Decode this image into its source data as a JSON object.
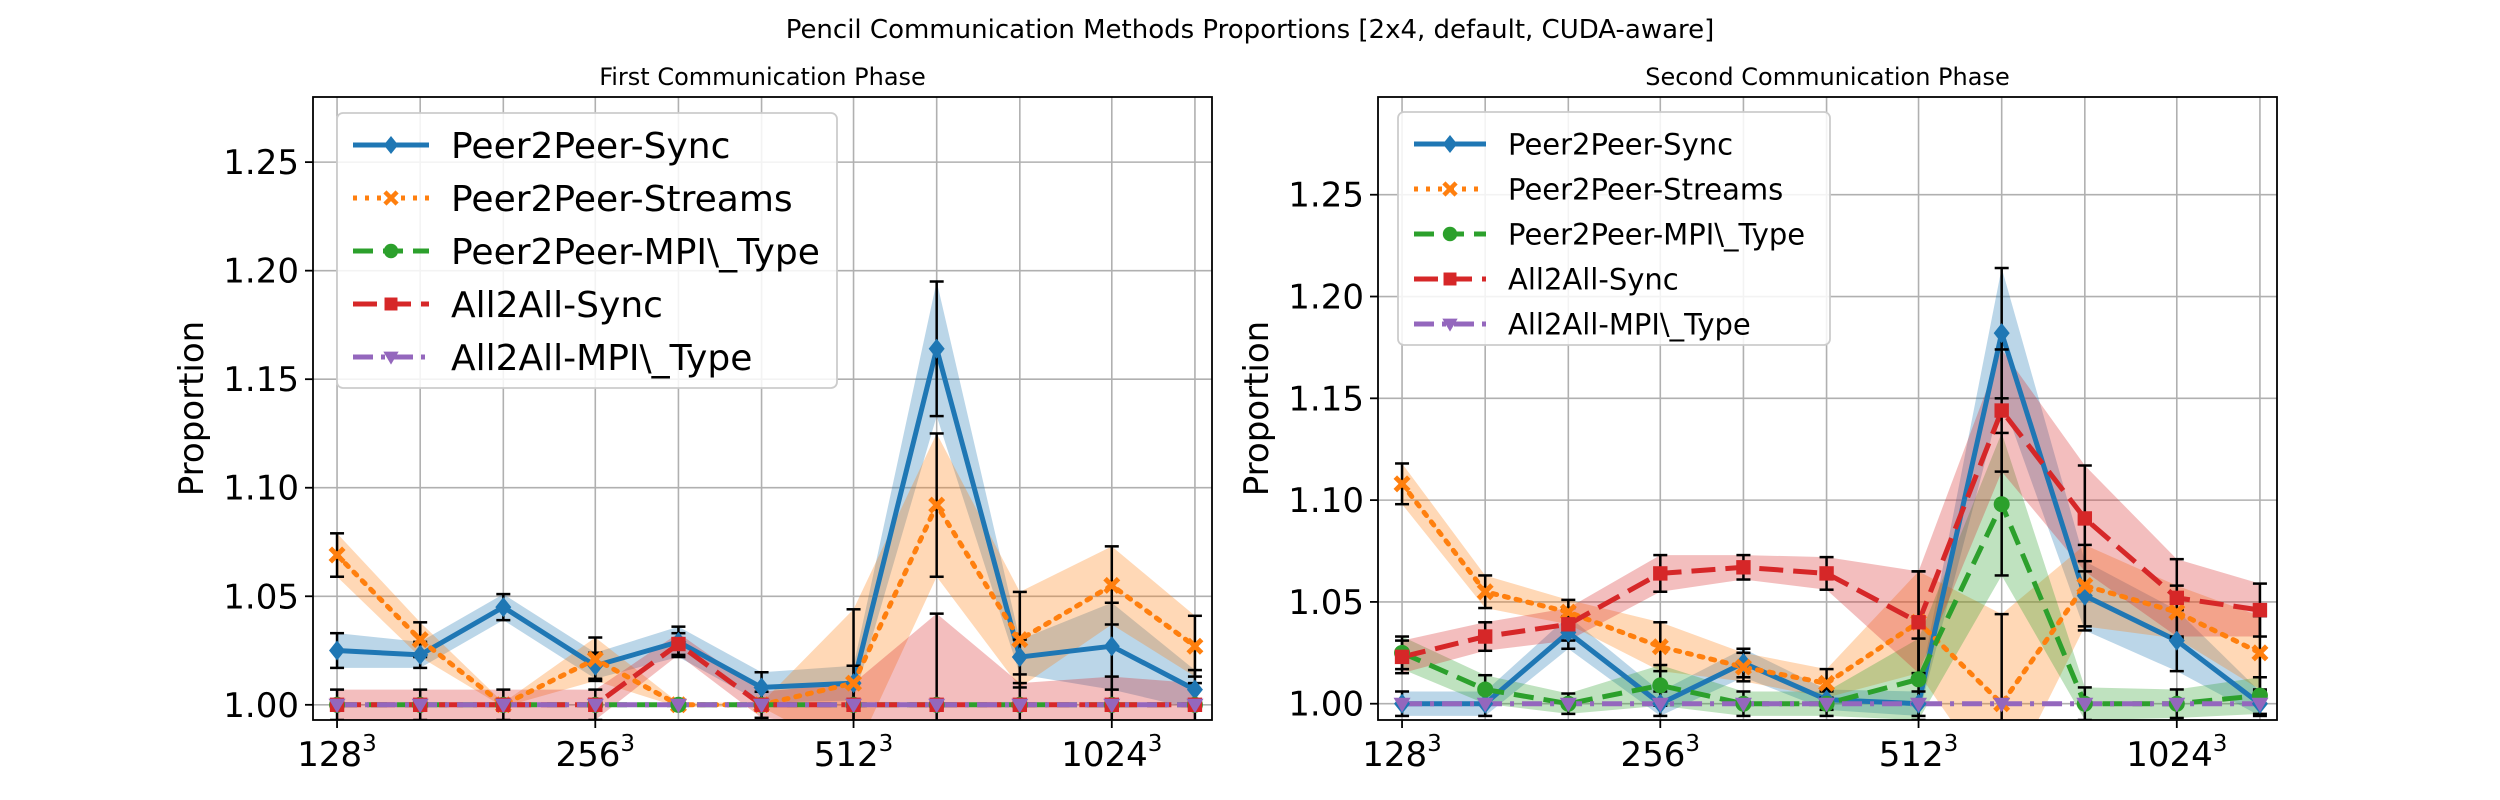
{
  "figure": {
    "title": "Pencil Communication Methods Proportions [2x4, default, CUDA-aware]"
  },
  "series_styles": [
    {
      "name": "Peer2Peer-Sync",
      "color": "#1f77b4",
      "dash": "",
      "marker": "diamond",
      "width": 5
    },
    {
      "name": "Peer2Peer-Streams",
      "color": "#ff7f0e",
      "dash": "4,8",
      "marker": "x",
      "width": 5
    },
    {
      "name": "Peer2Peer-MPI\\_Type",
      "color": "#2ca02c",
      "dash": "20,10",
      "marker": "circle",
      "width": 5
    },
    {
      "name": "All2All-Sync",
      "color": "#d62728",
      "dash": "24,10",
      "marker": "square",
      "width": 5
    },
    {
      "name": "All2All-MPI\\_Type",
      "color": "#9467bd",
      "dash": "20,8,4,8",
      "marker": "triangle-down",
      "width": 5
    }
  ],
  "chart_data": [
    {
      "type": "line",
      "title": "First Communication Phase",
      "xlabel": "",
      "ylabel": "Proportion",
      "x": [
        128,
        160,
        200,
        256,
        320,
        400,
        512,
        640,
        800,
        1024,
        1280
      ],
      "xticks": [
        {
          "value": 128,
          "base": "128",
          "exp": "3"
        },
        {
          "value": 256,
          "base": "256",
          "exp": "3"
        },
        {
          "value": 512,
          "base": "512",
          "exp": "3"
        },
        {
          "value": 1024,
          "base": "1024",
          "exp": "3"
        }
      ],
      "xscale": "log",
      "xlim": [
        120,
        1340
      ],
      "ylim": [
        0.993,
        1.28
      ],
      "yticks": [
        "1.00",
        "1.05",
        "1.10",
        "1.15",
        "1.20",
        "1.25"
      ],
      "grid": true,
      "legend": {
        "placement": "top-left",
        "size": "large",
        "entries": [
          "Peer2Peer-Sync",
          "Peer2Peer-Streams",
          "Peer2Peer-MPI\\_Type",
          "All2All-Sync",
          "All2All-MPI\\_Type"
        ]
      },
      "series": [
        {
          "name": "Peer2Peer-Sync",
          "values": [
            1.025,
            1.023,
            1.045,
            1.018,
            1.029,
            1.008,
            1.01,
            1.164,
            1.022,
            1.027,
            1.007
          ],
          "err": [
            0.008,
            0.006,
            0.006,
            0.006,
            0.007,
            0.007,
            0.008,
            0.031,
            0.008,
            0.02,
            0.009
          ]
        },
        {
          "name": "Peer2Peer-Streams",
          "values": [
            1.069,
            1.03,
            1.0,
            1.021,
            1.0,
            1.0,
            1.01,
            1.092,
            1.03,
            1.055,
            1.027
          ],
          "err": [
            0.01,
            0.008,
            0.001,
            0.01,
            0.001,
            0.001,
            0.034,
            0.033,
            0.022,
            0.018,
            0.014
          ]
        },
        {
          "name": "Peer2Peer-MPI\\_Type",
          "values": [
            1.0,
            1.0,
            1.0,
            1.0,
            1.0,
            1.0,
            1.0,
            1.0,
            1.0,
            1.0,
            1.0
          ],
          "err": [
            0.0,
            0.0,
            0.0,
            0.0,
            0.0,
            0.0,
            0.0,
            0.0,
            0.0,
            0.0,
            0.0
          ]
        },
        {
          "name": "All2All-Sync",
          "values": [
            1.0,
            1.0,
            1.0,
            1.0,
            1.028,
            1.0,
            1.0,
            1.0,
            1.0,
            1.0,
            1.0
          ],
          "err": [
            0.007,
            0.007,
            0.007,
            0.007,
            0.005,
            0.006,
            0.01,
            0.042,
            0.01,
            0.013,
            0.01
          ]
        },
        {
          "name": "All2All-MPI\\_Type",
          "values": [
            1.0,
            1.0,
            1.0,
            1.0,
            1.0,
            1.0,
            1.0,
            1.0,
            1.0,
            1.0,
            1.0
          ],
          "err": [
            0.0,
            0.0,
            0.0,
            0.0,
            0.0,
            0.0,
            0.0,
            0.0,
            0.0,
            0.0,
            0.0
          ]
        }
      ]
    },
    {
      "type": "line",
      "title": "Second Communication Phase",
      "xlabel": "",
      "ylabel": "Proportion",
      "x": [
        128,
        160,
        200,
        256,
        320,
        400,
        512,
        640,
        800,
        1024,
        1280
      ],
      "xticks": [
        {
          "value": 128,
          "base": "128",
          "exp": "3"
        },
        {
          "value": 256,
          "base": "256",
          "exp": "3"
        },
        {
          "value": 512,
          "base": "512",
          "exp": "3"
        },
        {
          "value": 1024,
          "base": "1024",
          "exp": "3"
        }
      ],
      "xscale": "log",
      "xlim": [
        120,
        1340
      ],
      "ylim": [
        0.992,
        1.298
      ],
      "yticks": [
        "1.00",
        "1.05",
        "1.10",
        "1.15",
        "1.20",
        "1.25"
      ],
      "grid": true,
      "legend": {
        "placement": "top-left",
        "size": "medium",
        "entries": [
          "Peer2Peer-Sync",
          "Peer2Peer-Streams",
          "Peer2Peer-MPI\\_Type",
          "All2All-Sync",
          "All2All-MPI\\_Type"
        ]
      },
      "series": [
        {
          "name": "Peer2Peer-Sync",
          "values": [
            1.0,
            1.0,
            1.035,
            1.0,
            1.02,
            1.002,
            1.0,
            1.182,
            1.053,
            1.031,
            1.0
          ],
          "err": [
            0.006,
            0.006,
            0.008,
            0.006,
            0.007,
            0.005,
            0.006,
            0.032,
            0.017,
            0.015,
            0.006
          ]
        },
        {
          "name": "Peer2Peer-Streams",
          "values": [
            1.108,
            1.055,
            1.045,
            1.028,
            1.018,
            1.01,
            1.04,
            1.0,
            1.058,
            1.045,
            1.025
          ],
          "err": [
            0.01,
            0.008,
            0.006,
            0.012,
            0.007,
            0.007,
            0.025,
            0.044,
            0.02,
            0.013,
            0.018
          ]
        },
        {
          "name": "Peer2Peer-MPI\\_Type",
          "values": [
            1.025,
            1.007,
            1.0,
            1.009,
            1.0,
            1.0,
            1.012,
            1.098,
            1.0,
            1.0,
            1.004
          ],
          "err": [
            0.008,
            0.007,
            0.005,
            0.01,
            0.006,
            0.006,
            0.02,
            0.035,
            0.008,
            0.007,
            0.009
          ]
        },
        {
          "name": "All2All-Sync",
          "values": [
            1.023,
            1.033,
            1.039,
            1.064,
            1.067,
            1.064,
            1.04,
            1.144,
            1.091,
            1.052,
            1.046
          ],
          "err": [
            0.008,
            0.007,
            0.008,
            0.009,
            0.006,
            0.008,
            0.025,
            0.03,
            0.026,
            0.019,
            0.013
          ]
        },
        {
          "name": "All2All-MPI\\_Type",
          "values": [
            1.0,
            1.0,
            1.0,
            1.0,
            1.0,
            1.0,
            1.0,
            1.0,
            1.0,
            1.0,
            1.0
          ],
          "err": [
            0.0,
            0.0,
            0.0,
            0.0,
            0.0,
            0.0,
            0.0,
            0.0,
            0.0,
            0.0,
            0.0
          ]
        }
      ]
    }
  ]
}
